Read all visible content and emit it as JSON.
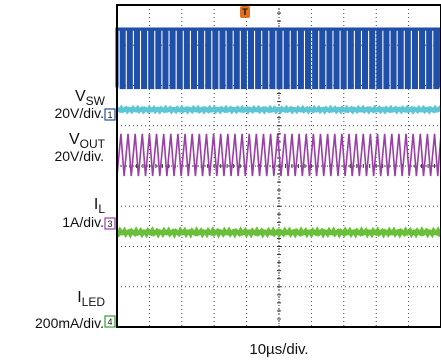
{
  "chart_data": {
    "type": "line",
    "title": "",
    "xlabel": "10µs/div.",
    "ylabel": "",
    "x_divisions": 10,
    "y_divisions": 8,
    "x_per_division_us": 10,
    "grid": true,
    "trigger_marker": "T",
    "trigger_color": "#e07020",
    "channel_labels": [
      {
        "name": "V",
        "sub": "SW",
        "scale": "20V/div.",
        "marker": "1"
      },
      {
        "name": "V",
        "sub": "OUT",
        "scale": "20V/div.",
        "marker": ""
      },
      {
        "name": "I",
        "sub": "L",
        "scale": "1A/div.",
        "marker": "3"
      },
      {
        "name": "I",
        "sub": "LED",
        "scale": "200mA/div.",
        "marker": "4"
      }
    ],
    "series": [
      {
        "kind": "switching",
        "color": "#1f4fa8",
        "ref_div": 6.0,
        "high_div": 7.4,
        "low_div": 5.95,
        "switch_period_div": 0.22,
        "duty": 0.6
      },
      {
        "kind": "dc",
        "color": "#5cc6d4",
        "level_div": 5.4,
        "ripple_div": 0.03
      },
      {
        "kind": "triangle",
        "color": "#9a3fa6",
        "ref_div": 3.4,
        "peak_div": 4.8,
        "valley_div": 3.75,
        "period_div": 0.22
      },
      {
        "kind": "dc",
        "color": "#6abf3a",
        "level_div": 2.35,
        "ripple_div": 0.04
      }
    ]
  }
}
